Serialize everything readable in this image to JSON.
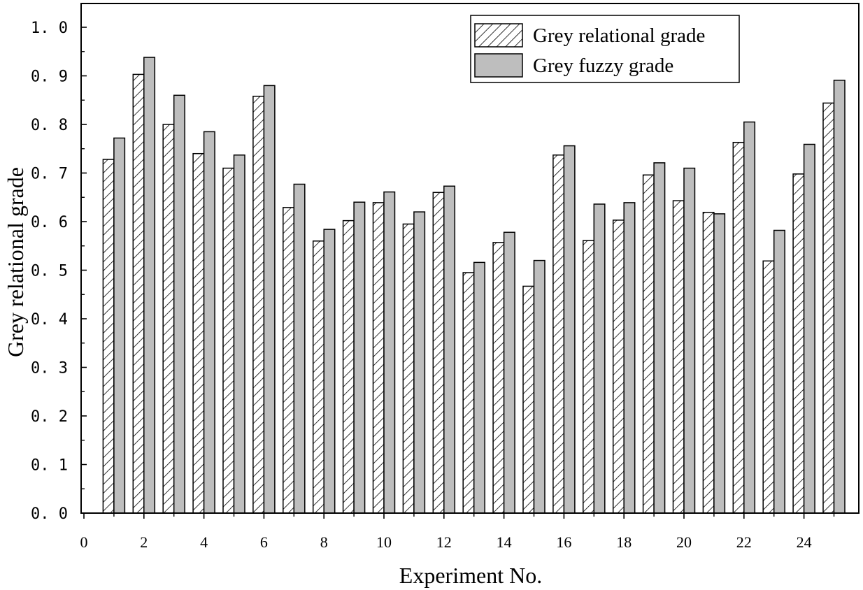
{
  "chart_data": {
    "type": "bar",
    "xlabel": "Experiment No.",
    "ylabel": "Grey relational grade",
    "ylim": [
      0.0,
      1.0
    ],
    "xlim": [
      0,
      26
    ],
    "x_ticks": [
      "0",
      "2",
      "4",
      "6",
      "8",
      "10",
      "12",
      "14",
      "16",
      "18",
      "20",
      "22",
      "24"
    ],
    "y_ticks": [
      "0. 0",
      "0. 1",
      "0. 2",
      "0. 3",
      "0. 4",
      "0. 5",
      "0. 6",
      "0. 7",
      "0. 8",
      "0. 9",
      "1. 0"
    ],
    "legend_position": "top-right",
    "grid": false,
    "categories": [
      1,
      2,
      3,
      4,
      5,
      6,
      7,
      8,
      9,
      10,
      11,
      12,
      13,
      14,
      15,
      16,
      17,
      18,
      19,
      20,
      21,
      22,
      23,
      24,
      25
    ],
    "series": [
      {
        "name": "Grey relational grade",
        "style": "hatched",
        "color": "#ffffff",
        "values": [
          0.728,
          0.903,
          0.8,
          0.74,
          0.71,
          0.858,
          0.629,
          0.56,
          0.602,
          0.639,
          0.595,
          0.66,
          0.495,
          0.557,
          0.467,
          0.737,
          0.561,
          0.603,
          0.696,
          0.643,
          0.619,
          0.763,
          0.519,
          0.698,
          0.844
        ]
      },
      {
        "name": "Grey fuzzy grade",
        "style": "solid",
        "color": "#bebebe",
        "values": [
          0.772,
          0.938,
          0.86,
          0.785,
          0.737,
          0.88,
          0.677,
          0.584,
          0.64,
          0.661,
          0.62,
          0.673,
          0.516,
          0.578,
          0.52,
          0.756,
          0.636,
          0.639,
          0.721,
          0.71,
          0.616,
          0.805,
          0.582,
          0.759,
          0.891
        ]
      }
    ]
  }
}
